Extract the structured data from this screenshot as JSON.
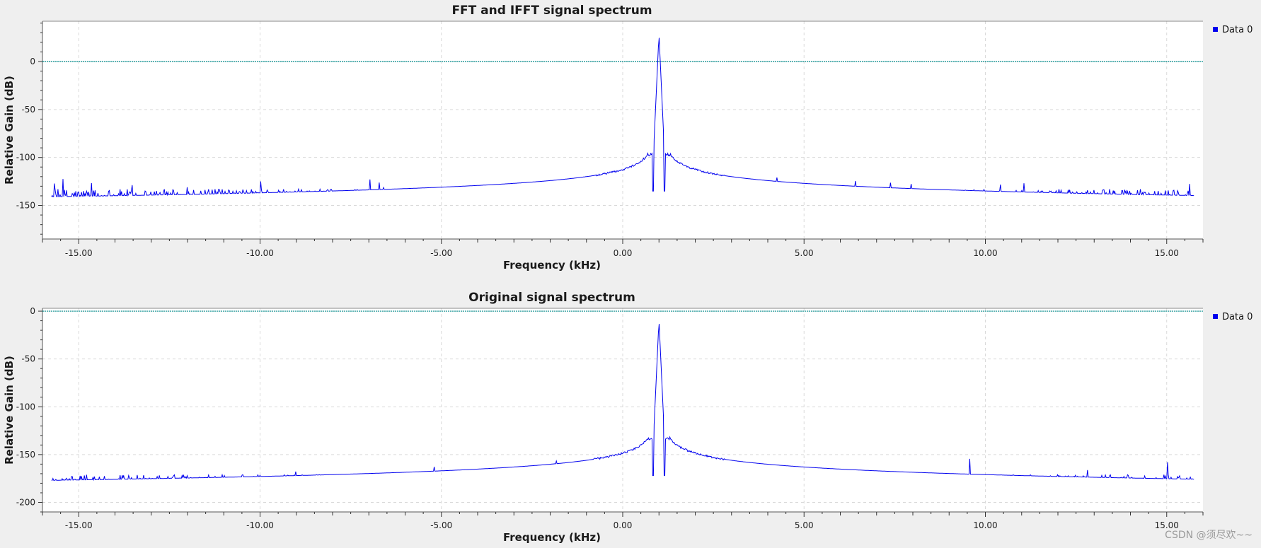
{
  "colors": {
    "background": "#efefef",
    "plot_bg": "#ffffff",
    "series": "#0000ee",
    "reference_line": "#008b8b",
    "grid": "#d9d9d9"
  },
  "watermark": "CSDN @须尽欢~~",
  "chart_data": [
    {
      "type": "line",
      "title": "FFT and IFFT signal spectrum",
      "xlabel": "Frequency (kHz)",
      "ylabel": "Relative Gain (dB)",
      "xlim": [
        -16.0,
        16.0
      ],
      "ylim": [
        -185,
        42
      ],
      "xticks": [
        -15,
        -10,
        -5,
        0,
        5,
        10,
        15
      ],
      "xtick_labels": [
        "-15.00",
        "-10.00",
        "-5.00",
        "0.00",
        "5.00",
        "10.00",
        "15.00"
      ],
      "yticks": [
        0,
        -50,
        -100,
        -150
      ],
      "ytick_labels": [
        "0",
        "-50",
        "-100",
        "-150"
      ],
      "reference_line_y": 0,
      "grid": true,
      "legend": {
        "position": "right",
        "entries": [
          "Data 0"
        ]
      },
      "series": [
        {
          "name": "Data 0",
          "peak_x": 1.0,
          "peak_y": 28,
          "noise_floor": -142,
          "shoulder_y": -97,
          "notch_y": -135
        }
      ]
    },
    {
      "type": "line",
      "title": "Original signal spectrum",
      "xlabel": "Frequency (kHz)",
      "ylabel": "Relative Gain (dB)",
      "xlim": [
        -16.0,
        16.0
      ],
      "ylim": [
        -210,
        3
      ],
      "xticks": [
        -15,
        -10,
        -5,
        0,
        5,
        10,
        15
      ],
      "xtick_labels": [
        "-15.00",
        "-10.00",
        "-5.00",
        "0.00",
        "5.00",
        "10.00",
        "15.00"
      ],
      "yticks": [
        0,
        -50,
        -100,
        -150,
        -200
      ],
      "ytick_labels": [
        "0",
        "-50",
        "-100",
        "-150",
        "-200"
      ],
      "reference_line_y": 0,
      "grid": true,
      "legend": {
        "position": "right",
        "entries": [
          "Data 0"
        ]
      },
      "series": [
        {
          "name": "Data 0",
          "peak_x": 1.0,
          "peak_y": -10,
          "noise_floor": -180,
          "shoulder_y": -133,
          "notch_y": -172
        }
      ]
    }
  ]
}
